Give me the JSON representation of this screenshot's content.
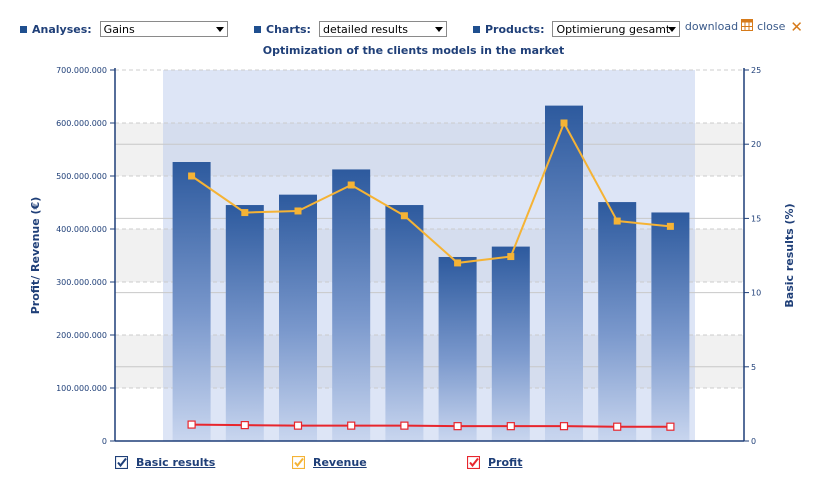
{
  "toolbar": {
    "analyses": {
      "label": "Analyses:",
      "value": "Gains"
    },
    "charts": {
      "label": "Charts:",
      "value": "detailed results"
    },
    "products": {
      "label": "Products:",
      "value": "Optimierung gesamt"
    },
    "download_label": "download",
    "close_label": "close"
  },
  "chart_data": {
    "type": "bar",
    "title": "Optimization of the clients models in the market",
    "ylabel": "Profit/ Revenue (€)",
    "y2label": "Basic results (%)",
    "ylim": [
      0,
      700000000
    ],
    "y2lim": [
      0,
      25
    ],
    "yticks": [
      "0",
      "100.000.000",
      "200.000.000",
      "300.000.000",
      "400.000.000",
      "500.000.000",
      "600.000.000",
      "700.000.000"
    ],
    "y2ticks": [
      "0",
      "5",
      "10",
      "15",
      "20",
      "25"
    ],
    "grid": true,
    "legend_position": "bottom",
    "series": [
      {
        "name": "Basic results",
        "type": "bar",
        "axis": "right",
        "color": "#2d5a9e",
        "values": [
          18.8,
          15.9,
          16.6,
          18.3,
          15.9,
          12.4,
          13.1,
          22.6,
          16.1,
          15.4
        ]
      },
      {
        "name": "Revenue",
        "type": "line",
        "axis": "left",
        "color": "#f5b335",
        "values": [
          500000000,
          431000000,
          434000000,
          483000000,
          425000000,
          336000000,
          348000000,
          600000000,
          415000000,
          405000000
        ]
      },
      {
        "name": "Profit",
        "type": "line",
        "axis": "left",
        "color": "#e8262d",
        "values": [
          31000000,
          30000000,
          29000000,
          29000000,
          29000000,
          28000000,
          28000000,
          28000000,
          27000000,
          27000000
        ]
      }
    ]
  }
}
